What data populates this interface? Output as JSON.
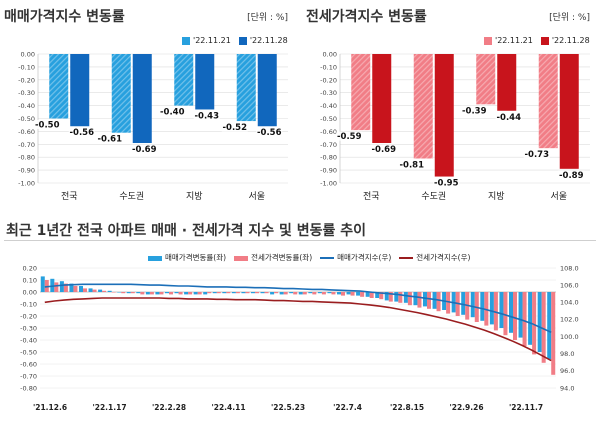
{
  "chart_data": [
    {
      "type": "bar",
      "title": "매매가격지수 변동률",
      "unit": "[단위 : %]",
      "categories": [
        "전국",
        "수도권",
        "지방",
        "서울"
      ],
      "series": [
        {
          "name": "'22.11.21",
          "values": [
            -0.5,
            -0.61,
            -0.4,
            -0.52
          ],
          "color": "#27a0de"
        },
        {
          "name": "'22.11.28",
          "values": [
            -0.56,
            -0.69,
            -0.43,
            -0.56
          ],
          "color": "#1167bd"
        }
      ],
      "ylim": [
        -1.0,
        0.0
      ],
      "yticks": [
        "0.00",
        "-0.10",
        "-0.20",
        "-0.30",
        "-0.40",
        "-0.50",
        "-0.60",
        "-0.70",
        "-0.80",
        "-0.90",
        "-1.00"
      ],
      "value_labels": [
        [
          "-0.50",
          "-0.61",
          "-0.40",
          "-0.52"
        ],
        [
          "-0.56",
          "-0.69",
          "-0.43",
          "-0.56"
        ]
      ],
      "grid": true
    },
    {
      "type": "bar",
      "title": "전세가격지수 변동률",
      "unit": "[단위 : %]",
      "categories": [
        "전국",
        "수도권",
        "지방",
        "서울"
      ],
      "series": [
        {
          "name": "'22.11.21",
          "values": [
            -0.59,
            -0.81,
            -0.39,
            -0.73
          ],
          "color": "#f17d86"
        },
        {
          "name": "'22.11.28",
          "values": [
            -0.69,
            -0.95,
            -0.44,
            -0.89
          ],
          "color": "#c8141c"
        }
      ],
      "ylim": [
        -1.0,
        0.0
      ],
      "yticks": [
        "0.00",
        "-0.10",
        "-0.20",
        "-0.30",
        "-0.40",
        "-0.50",
        "-0.60",
        "-0.70",
        "-0.80",
        "-0.90",
        "-1.00"
      ],
      "value_labels": [
        [
          "-0.59",
          "-0.81",
          "-0.39",
          "-0.73"
        ],
        [
          "-0.69",
          "-0.95",
          "-0.44",
          "-0.89"
        ]
      ],
      "grid": true
    },
    {
      "type": "bar",
      "title": "최근 1년간 전국 아파트 매매 · 전세가격 지수 및 변동률 추이",
      "x_labels": [
        "'21.12.6",
        "'22.1.17",
        "'22.2.28",
        "'22.4.11",
        "'22.5.23",
        "'22.7.4",
        "'22.8.15",
        "'22.9.26",
        "'22.11.7"
      ],
      "ylim_left": [
        -0.8,
        0.2
      ],
      "yticks_left": [
        "0.20",
        "0.10",
        "0.00",
        "-0.10",
        "-0.20",
        "-0.30",
        "-0.40",
        "-0.50",
        "-0.60",
        "-0.70",
        "-0.80"
      ],
      "ylim_right": [
        94.0,
        108.0
      ],
      "yticks_right": [
        "108.0",
        "106.0",
        "104.0",
        "102.0",
        "100.0",
        "98.0",
        "96.0",
        "94.0"
      ],
      "legend": [
        "매매가격변동률(좌)",
        "전세가격변동률(좌)",
        "매매가격지수(우)",
        "전세가격지수(우)"
      ],
      "series": [
        {
          "name": "매매가격변동률(좌)",
          "kind": "bar",
          "axis": "left",
          "color": "#27a0de",
          "values": [
            0.13,
            0.11,
            0.09,
            0.07,
            0.05,
            0.03,
            0.02,
            0.01,
            0.0,
            -0.01,
            -0.01,
            -0.02,
            -0.02,
            -0.01,
            -0.01,
            -0.02,
            -0.02,
            -0.02,
            -0.01,
            -0.01,
            -0.01,
            -0.01,
            -0.01,
            -0.01,
            -0.02,
            -0.02,
            -0.01,
            -0.02,
            -0.01,
            -0.01,
            -0.01,
            -0.02,
            -0.02,
            -0.03,
            -0.04,
            -0.05,
            -0.07,
            -0.08,
            -0.09,
            -0.11,
            -0.12,
            -0.14,
            -0.15,
            -0.17,
            -0.19,
            -0.21,
            -0.24,
            -0.27,
            -0.3,
            -0.34,
            -0.38,
            -0.44,
            -0.5,
            -0.56
          ]
        },
        {
          "name": "전세가격변동률(좌)",
          "kind": "bar",
          "axis": "left",
          "color": "#f17d86",
          "values": [
            0.1,
            0.08,
            0.07,
            0.05,
            0.03,
            0.02,
            0.01,
            0.0,
            -0.01,
            -0.01,
            -0.02,
            -0.02,
            -0.02,
            -0.02,
            -0.02,
            -0.02,
            -0.02,
            -0.01,
            -0.01,
            -0.01,
            -0.01,
            -0.01,
            -0.01,
            -0.01,
            -0.01,
            -0.02,
            -0.02,
            -0.02,
            -0.02,
            -0.02,
            -0.02,
            -0.03,
            -0.03,
            -0.04,
            -0.05,
            -0.06,
            -0.08,
            -0.09,
            -0.11,
            -0.13,
            -0.14,
            -0.16,
            -0.18,
            -0.2,
            -0.23,
            -0.25,
            -0.28,
            -0.32,
            -0.36,
            -0.4,
            -0.45,
            -0.52,
            -0.59,
            -0.69
          ]
        },
        {
          "name": "매매가격지수(우)",
          "kind": "line",
          "axis": "right",
          "color": "#1c6fb8",
          "values": [
            105.8,
            105.9,
            106.0,
            106.05,
            106.1,
            106.1,
            106.1,
            106.1,
            106.1,
            106.1,
            106.05,
            106.0,
            106.0,
            105.95,
            105.9,
            105.9,
            105.85,
            105.8,
            105.8,
            105.8,
            105.75,
            105.75,
            105.7,
            105.7,
            105.65,
            105.6,
            105.6,
            105.55,
            105.5,
            105.5,
            105.45,
            105.4,
            105.35,
            105.3,
            105.2,
            105.1,
            105.0,
            104.9,
            104.75,
            104.6,
            104.45,
            104.3,
            104.1,
            103.9,
            103.7,
            103.45,
            103.2,
            102.9,
            102.6,
            102.25,
            101.9,
            101.5,
            101.0,
            100.5
          ]
        },
        {
          "name": "전세가격지수(우)",
          "kind": "line",
          "axis": "right",
          "color": "#9a1d1f",
          "values": [
            104.0,
            104.15,
            104.25,
            104.35,
            104.4,
            104.45,
            104.5,
            104.5,
            104.5,
            104.5,
            104.5,
            104.5,
            104.5,
            104.45,
            104.45,
            104.4,
            104.4,
            104.4,
            104.35,
            104.35,
            104.3,
            104.3,
            104.3,
            104.25,
            104.2,
            104.2,
            104.15,
            104.1,
            104.1,
            104.05,
            104.0,
            103.95,
            103.9,
            103.8,
            103.7,
            103.55,
            103.4,
            103.2,
            103.0,
            102.8,
            102.55,
            102.3,
            102.05,
            101.75,
            101.45,
            101.1,
            100.75,
            100.35,
            99.9,
            99.45,
            98.95,
            98.4,
            97.8,
            97.2
          ]
        }
      ],
      "grid": true
    }
  ]
}
